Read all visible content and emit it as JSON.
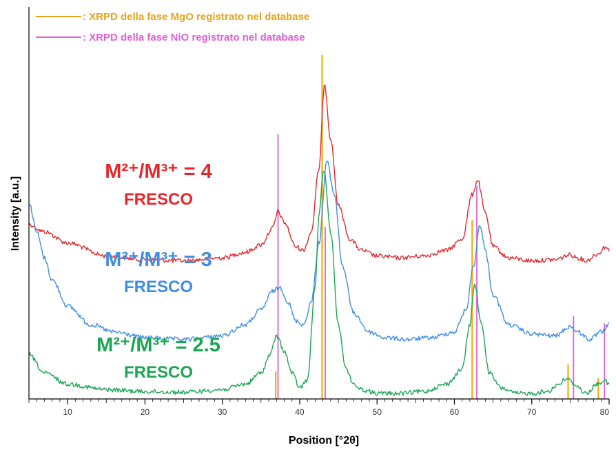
{
  "chart_data": {
    "type": "line",
    "title": "",
    "xlabel": "Position [°2θ]",
    "ylabel": "Intensity [a.u.]",
    "xlim": [
      5,
      80
    ],
    "x_ticks": [
      "10",
      "20",
      "30",
      "40",
      "50",
      "60",
      "70",
      "80"
    ],
    "y_ticks": "none",
    "grid": false,
    "legend": {
      "placement": "top-left",
      "entries": [
        {
          "label": ": XRPD della fase MgO registrato nel database",
          "color": "#e8a317"
        },
        {
          "label": ": XRPD della fase NiO registrato nel database",
          "color": "#e05fd4"
        }
      ]
    },
    "reference_lines": {
      "MgO": {
        "color": "#f5b000",
        "positions": [
          36.9,
          42.9,
          62.3,
          74.7,
          78.6
        ],
        "relative_heights": [
          0.08,
          1.0,
          0.52,
          0.1,
          0.06
        ]
      },
      "NiO": {
        "color": "#e05fd4",
        "positions": [
          37.2,
          43.3,
          62.9,
          75.4,
          79.4
        ],
        "relative_heights": [
          0.77,
          0.5,
          0.62,
          0.24,
          0.22
        ]
      }
    },
    "series": [
      {
        "name": "M²⁺/M³⁺ = 4 FRESCO",
        "label_line1": "M²⁺/M³⁺ = 4",
        "label_line2": "FRESCO",
        "color": "#e8262a",
        "x": [
          5,
          7,
          10,
          15,
          20,
          25,
          30,
          33,
          35,
          36.5,
          37.2,
          38,
          39.5,
          40.5,
          41.5,
          42.5,
          43.2,
          44,
          45,
          46.5,
          48,
          50,
          53,
          56,
          59,
          61,
          62.3,
          63,
          64,
          65,
          67,
          70,
          73,
          75,
          76,
          77,
          78.5,
          79.5,
          80
        ],
        "y": [
          0.53,
          0.55,
          0.58,
          0.615,
          0.625,
          0.628,
          0.62,
          0.605,
          0.585,
          0.54,
          0.495,
          0.525,
          0.59,
          0.6,
          0.55,
          0.38,
          0.15,
          0.3,
          0.48,
          0.57,
          0.6,
          0.615,
          0.62,
          0.615,
          0.6,
          0.57,
          0.45,
          0.41,
          0.5,
          0.59,
          0.62,
          0.628,
          0.625,
          0.612,
          0.62,
          0.628,
          0.61,
          0.59,
          0.6
        ]
      },
      {
        "name": "M²⁺/M³⁺ = 3 FRESCO",
        "label_line1": "M²⁺/M³⁺ = 3",
        "label_line2": "FRESCO",
        "color": "#3e8ee6",
        "x": [
          5,
          6,
          7,
          8,
          10,
          13,
          16,
          20,
          25,
          30,
          33,
          35,
          36.5,
          37.5,
          38.5,
          39.5,
          40.5,
          41.5,
          42.5,
          43.5,
          44.5,
          45.5,
          47,
          49,
          51,
          54,
          57,
          60,
          61.5,
          62.5,
          63.3,
          64,
          65,
          67,
          70,
          73,
          75,
          76,
          77.5,
          79,
          80
        ],
        "y": [
          0.47,
          0.55,
          0.62,
          0.68,
          0.75,
          0.8,
          0.82,
          0.835,
          0.84,
          0.83,
          0.8,
          0.76,
          0.71,
          0.7,
          0.74,
          0.79,
          0.8,
          0.74,
          0.58,
          0.36,
          0.45,
          0.64,
          0.77,
          0.82,
          0.835,
          0.84,
          0.835,
          0.82,
          0.76,
          0.64,
          0.53,
          0.6,
          0.72,
          0.8,
          0.825,
          0.83,
          0.805,
          0.82,
          0.84,
          0.82,
          0.8
        ]
      },
      {
        "name": "M²⁺/M³⁺ = 2.5 FRESCO",
        "label_line1": "M²⁺/M³⁺ = 2.5",
        "label_line2": "FRESCO",
        "color": "#1aa653",
        "x": [
          5,
          7,
          10,
          15,
          20,
          25,
          30,
          33,
          35,
          36.2,
          37,
          38,
          39,
          40,
          41,
          42,
          42.5,
          43.1,
          44,
          45,
          46,
          47,
          48,
          50,
          53,
          56,
          59,
          61,
          62,
          62.6,
          63.5,
          64.5,
          66,
          68,
          70,
          72,
          73.5,
          74.5,
          75.5,
          77,
          78.5,
          79.3,
          80
        ],
        "y": [
          0.88,
          0.93,
          0.96,
          0.975,
          0.98,
          0.982,
          0.975,
          0.96,
          0.93,
          0.88,
          0.83,
          0.87,
          0.93,
          0.97,
          0.95,
          0.7,
          0.5,
          0.38,
          0.55,
          0.8,
          0.92,
          0.96,
          0.975,
          0.985,
          0.985,
          0.98,
          0.96,
          0.92,
          0.8,
          0.69,
          0.8,
          0.93,
          0.97,
          0.985,
          0.985,
          0.98,
          0.96,
          0.945,
          0.96,
          0.985,
          0.96,
          0.95,
          0.96
        ]
      }
    ]
  }
}
